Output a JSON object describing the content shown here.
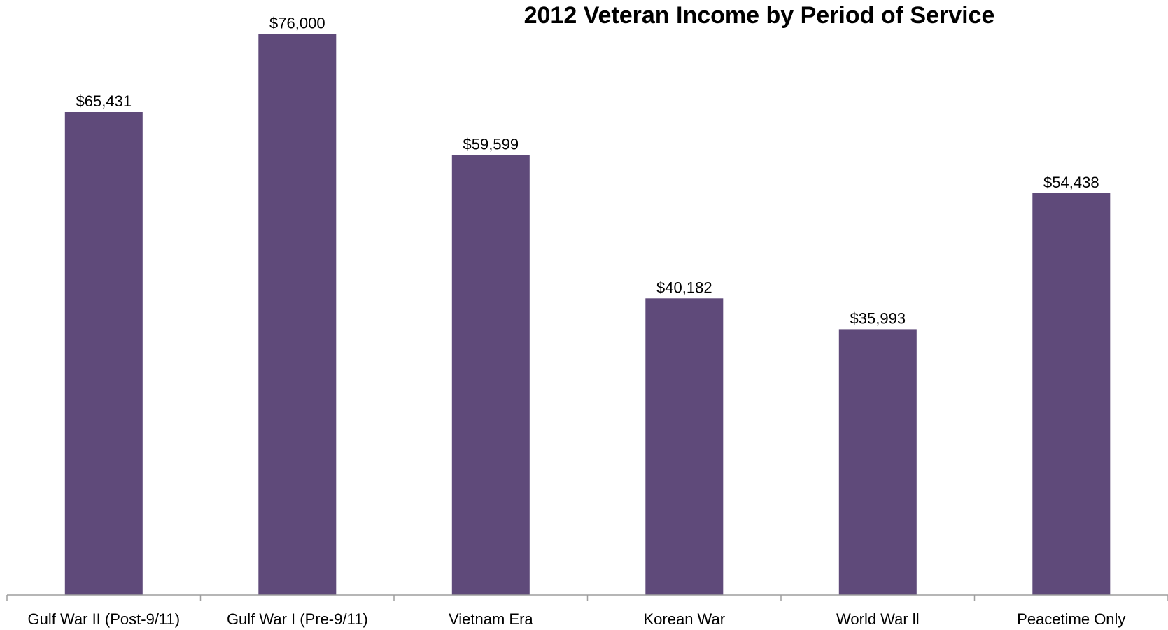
{
  "chart_data": {
    "type": "bar",
    "title": "2012 Veteran Income by Period of Service",
    "categories": [
      "Gulf War II (Post-9/11)",
      "Gulf War I (Pre-9/11)",
      "Vietnam Era",
      "Korean War",
      "World War ll",
      "Peacetime Only"
    ],
    "values": [
      65431,
      76000,
      59599,
      40182,
      35993,
      54438
    ],
    "data_labels": [
      "$65,431",
      "$76,000",
      "$59,599",
      "$40,182",
      "$35,993",
      "$54,438"
    ],
    "ylim": [
      0,
      77000
    ],
    "bar_color": "#5f4a7a",
    "axis_color": "#9e9e9e",
    "grid": false,
    "legend": "none"
  }
}
